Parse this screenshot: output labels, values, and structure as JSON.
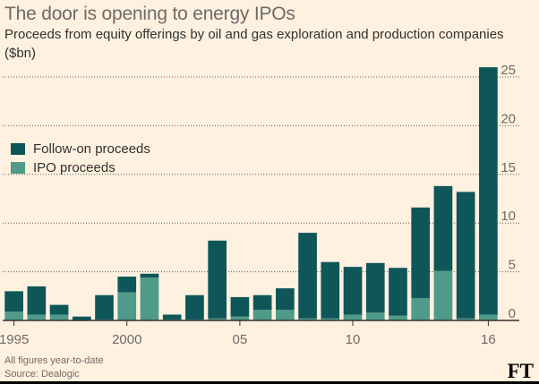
{
  "title": "The door is opening to energy IPOs",
  "subtitle": "Proceeds from equity offerings by oil and gas exploration and production companies ($bn)",
  "notes": [
    "All figures year-to-date",
    "Source: Dealogic"
  ],
  "logo": "FT",
  "colors": {
    "background": "#fff1e0",
    "follow_on": "#0f5659",
    "ipo": "#4f9a88",
    "grid": "#5f5a55",
    "axis": "#33302e"
  },
  "chart_data": {
    "type": "bar",
    "stacked": true,
    "categories": [
      "1995",
      "1996",
      "1997",
      "1998",
      "1999",
      "2000",
      "2001",
      "2002",
      "2003",
      "2004",
      "2005",
      "2006",
      "2007",
      "2008",
      "2009",
      "2010",
      "2011",
      "2012",
      "2013",
      "2014",
      "2015",
      "2016"
    ],
    "x_tick_labels": [
      {
        "category": "1995",
        "label": "1995"
      },
      {
        "category": "2000",
        "label": "2000"
      },
      {
        "category": "2005",
        "label": "05"
      },
      {
        "category": "2010",
        "label": "10"
      },
      {
        "category": "2016",
        "label": "16"
      }
    ],
    "series": [
      {
        "name": "IPO proceeds",
        "color": "#4f9a88",
        "values": [
          0.9,
          0.6,
          0.6,
          0.0,
          0.1,
          2.9,
          4.4,
          0.1,
          0.1,
          0.2,
          0.4,
          1.1,
          1.1,
          0.2,
          0.2,
          0.6,
          0.8,
          0.5,
          2.3,
          5.1,
          0.2,
          0.6
        ]
      },
      {
        "name": "Follow-on proceeds",
        "color": "#0f5659",
        "values": [
          2.1,
          2.9,
          1.0,
          0.4,
          2.5,
          1.6,
          0.4,
          0.5,
          2.5,
          8.0,
          2.0,
          1.5,
          2.2,
          8.8,
          5.8,
          4.9,
          5.1,
          4.9,
          9.3,
          8.7,
          13.0,
          25.4
        ]
      }
    ],
    "legend": [
      "Follow-on proceeds",
      "IPO proceeds"
    ],
    "legend_position": "left",
    "ylim": [
      0,
      25
    ],
    "yticks": [
      0,
      5,
      10,
      15,
      20,
      25
    ],
    "y_axis_side": "right",
    "grid": true
  }
}
